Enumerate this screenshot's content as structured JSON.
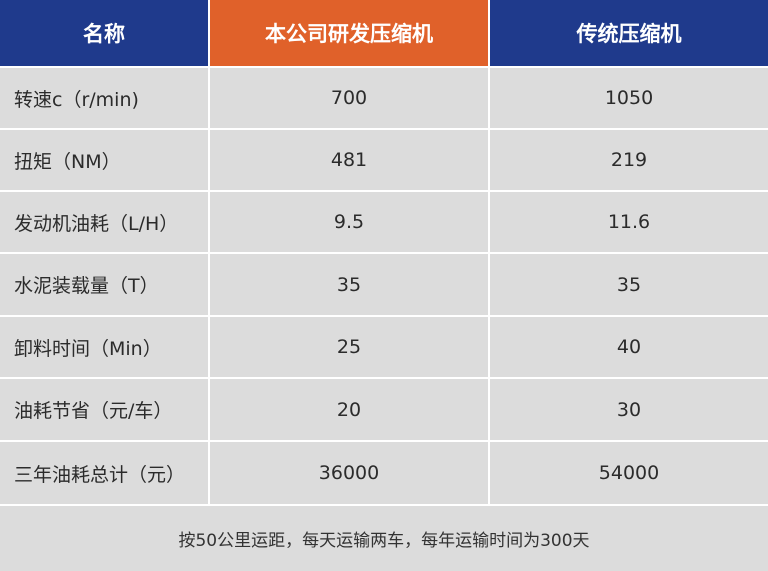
{
  "table": {
    "headers": [
      "名称",
      "本公司研发压缩机",
      "传统压缩机"
    ],
    "rows": [
      {
        "label": "转速c（r/min)",
        "ours": "700",
        "traditional": "1050"
      },
      {
        "label": "扭矩（NM）",
        "ours": "481",
        "traditional": "219"
      },
      {
        "label": "发动机油耗（L/H）",
        "ours": "9.5",
        "traditional": "11.6"
      },
      {
        "label": "水泥装载量（T）",
        "ours": "35",
        "traditional": "35"
      },
      {
        "label": "卸料时间（Min）",
        "ours": "25",
        "traditional": "40"
      },
      {
        "label": "油耗节省（元/车）",
        "ours": "20",
        "traditional": "30"
      },
      {
        "label": "三年油耗总计（元）",
        "ours": "36000",
        "traditional": "54000"
      }
    ],
    "footnote": "按50公里运距，每天运输两车，每年运输时间为300天"
  },
  "colors": {
    "header_blue": "#1f3a8c",
    "header_orange": "#e0612a",
    "cell_bg": "#dcdcdc",
    "border": "#ffffff"
  }
}
